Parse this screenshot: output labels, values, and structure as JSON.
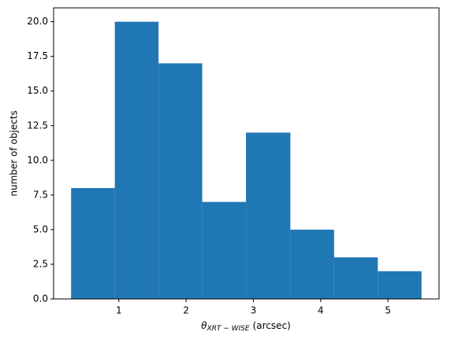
{
  "chart_data": {
    "type": "histogram",
    "bins": [
      0.29,
      0.94,
      1.59,
      2.24,
      2.89,
      3.55,
      4.2,
      4.85,
      5.5
    ],
    "values": [
      8,
      20,
      17,
      7,
      12,
      5,
      3,
      2
    ],
    "color": "#1f77b4",
    "xlabel": {
      "symbol": "θ",
      "subscript": "XRT − WISE",
      "unit": "(arcsec)"
    },
    "ylabel": "number of objects",
    "xlim": [
      0.03,
      5.76
    ],
    "xticks": [
      1,
      2,
      3,
      4,
      5
    ],
    "ylim": [
      0,
      21
    ],
    "yticks": [
      {
        "value": 0,
        "label": "0.0"
      },
      {
        "value": 2.5,
        "label": "2.5"
      },
      {
        "value": 5,
        "label": "5.0"
      },
      {
        "value": 7.5,
        "label": "7.5"
      },
      {
        "value": 10,
        "label": "10.0"
      },
      {
        "value": 12.5,
        "label": "12.5"
      },
      {
        "value": 15,
        "label": "15.0"
      },
      {
        "value": 17.5,
        "label": "17.5"
      },
      {
        "value": 20,
        "label": "20.0"
      }
    ],
    "grid": false
  }
}
